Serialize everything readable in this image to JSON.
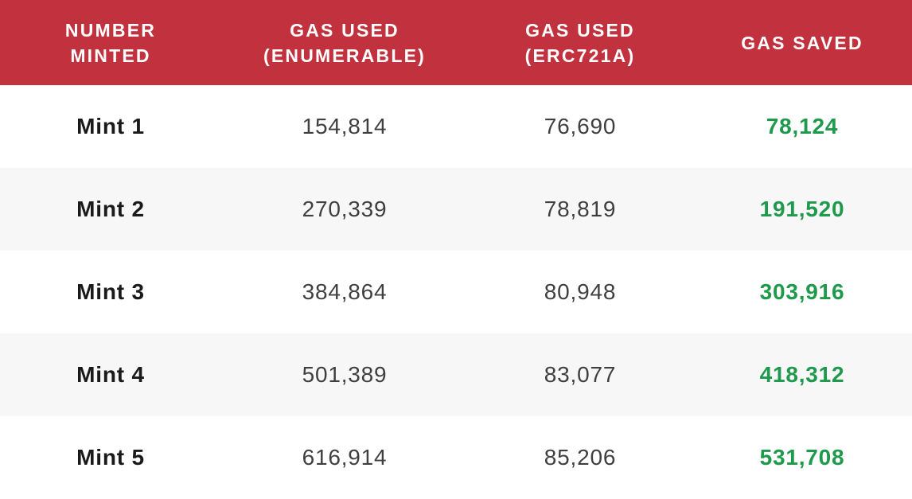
{
  "colors": {
    "header_bg": "#c1323e",
    "header_text": "#ffffff",
    "row_alt_bg": "#f7f7f7",
    "saved_text": "#1f9a4c"
  },
  "chart_data": {
    "type": "table",
    "columns": [
      "NUMBER\nMINTED",
      "GAS USED\n(ENUMERABLE)",
      "GAS USED\n(ERC721A)",
      "GAS SAVED"
    ],
    "rows": [
      [
        "Mint 1",
        "154,814",
        "76,690",
        "78,124"
      ],
      [
        "Mint 2",
        "270,339",
        "78,819",
        "191,520"
      ],
      [
        "Mint 3",
        "384,864",
        "80,948",
        "303,916"
      ],
      [
        "Mint 4",
        "501,389",
        "83,077",
        "418,312"
      ],
      [
        "Mint 5",
        "616,914",
        "85,206",
        "531,708"
      ]
    ]
  }
}
